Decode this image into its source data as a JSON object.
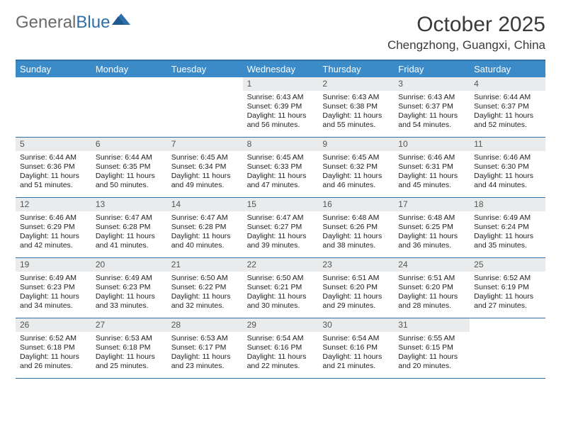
{
  "logo": {
    "text1": "General",
    "text2": "Blue"
  },
  "title": "October 2025",
  "location": "Chengzhong, Guangxi, China",
  "colors": {
    "header_bg": "#3b8bc8",
    "border": "#2f6fa8",
    "daynum_bg": "#e9ebec",
    "logo_gray": "#6a6a6a",
    "logo_blue": "#2f6fa8"
  },
  "weekdays": [
    "Sunday",
    "Monday",
    "Tuesday",
    "Wednesday",
    "Thursday",
    "Friday",
    "Saturday"
  ],
  "weeks": [
    [
      null,
      null,
      null,
      {
        "n": "1",
        "sr": "6:43 AM",
        "ss": "6:39 PM",
        "dl": "11 hours and 56 minutes."
      },
      {
        "n": "2",
        "sr": "6:43 AM",
        "ss": "6:38 PM",
        "dl": "11 hours and 55 minutes."
      },
      {
        "n": "3",
        "sr": "6:43 AM",
        "ss": "6:37 PM",
        "dl": "11 hours and 54 minutes."
      },
      {
        "n": "4",
        "sr": "6:44 AM",
        "ss": "6:37 PM",
        "dl": "11 hours and 52 minutes."
      }
    ],
    [
      {
        "n": "5",
        "sr": "6:44 AM",
        "ss": "6:36 PM",
        "dl": "11 hours and 51 minutes."
      },
      {
        "n": "6",
        "sr": "6:44 AM",
        "ss": "6:35 PM",
        "dl": "11 hours and 50 minutes."
      },
      {
        "n": "7",
        "sr": "6:45 AM",
        "ss": "6:34 PM",
        "dl": "11 hours and 49 minutes."
      },
      {
        "n": "8",
        "sr": "6:45 AM",
        "ss": "6:33 PM",
        "dl": "11 hours and 47 minutes."
      },
      {
        "n": "9",
        "sr": "6:45 AM",
        "ss": "6:32 PM",
        "dl": "11 hours and 46 minutes."
      },
      {
        "n": "10",
        "sr": "6:46 AM",
        "ss": "6:31 PM",
        "dl": "11 hours and 45 minutes."
      },
      {
        "n": "11",
        "sr": "6:46 AM",
        "ss": "6:30 PM",
        "dl": "11 hours and 44 minutes."
      }
    ],
    [
      {
        "n": "12",
        "sr": "6:46 AM",
        "ss": "6:29 PM",
        "dl": "11 hours and 42 minutes."
      },
      {
        "n": "13",
        "sr": "6:47 AM",
        "ss": "6:28 PM",
        "dl": "11 hours and 41 minutes."
      },
      {
        "n": "14",
        "sr": "6:47 AM",
        "ss": "6:28 PM",
        "dl": "11 hours and 40 minutes."
      },
      {
        "n": "15",
        "sr": "6:47 AM",
        "ss": "6:27 PM",
        "dl": "11 hours and 39 minutes."
      },
      {
        "n": "16",
        "sr": "6:48 AM",
        "ss": "6:26 PM",
        "dl": "11 hours and 38 minutes."
      },
      {
        "n": "17",
        "sr": "6:48 AM",
        "ss": "6:25 PM",
        "dl": "11 hours and 36 minutes."
      },
      {
        "n": "18",
        "sr": "6:49 AM",
        "ss": "6:24 PM",
        "dl": "11 hours and 35 minutes."
      }
    ],
    [
      {
        "n": "19",
        "sr": "6:49 AM",
        "ss": "6:23 PM",
        "dl": "11 hours and 34 minutes."
      },
      {
        "n": "20",
        "sr": "6:49 AM",
        "ss": "6:23 PM",
        "dl": "11 hours and 33 minutes."
      },
      {
        "n": "21",
        "sr": "6:50 AM",
        "ss": "6:22 PM",
        "dl": "11 hours and 32 minutes."
      },
      {
        "n": "22",
        "sr": "6:50 AM",
        "ss": "6:21 PM",
        "dl": "11 hours and 30 minutes."
      },
      {
        "n": "23",
        "sr": "6:51 AM",
        "ss": "6:20 PM",
        "dl": "11 hours and 29 minutes."
      },
      {
        "n": "24",
        "sr": "6:51 AM",
        "ss": "6:20 PM",
        "dl": "11 hours and 28 minutes."
      },
      {
        "n": "25",
        "sr": "6:52 AM",
        "ss": "6:19 PM",
        "dl": "11 hours and 27 minutes."
      }
    ],
    [
      {
        "n": "26",
        "sr": "6:52 AM",
        "ss": "6:18 PM",
        "dl": "11 hours and 26 minutes."
      },
      {
        "n": "27",
        "sr": "6:53 AM",
        "ss": "6:18 PM",
        "dl": "11 hours and 25 minutes."
      },
      {
        "n": "28",
        "sr": "6:53 AM",
        "ss": "6:17 PM",
        "dl": "11 hours and 23 minutes."
      },
      {
        "n": "29",
        "sr": "6:54 AM",
        "ss": "6:16 PM",
        "dl": "11 hours and 22 minutes."
      },
      {
        "n": "30",
        "sr": "6:54 AM",
        "ss": "6:16 PM",
        "dl": "11 hours and 21 minutes."
      },
      {
        "n": "31",
        "sr": "6:55 AM",
        "ss": "6:15 PM",
        "dl": "11 hours and 20 minutes."
      },
      null
    ]
  ],
  "labels": {
    "sunrise": "Sunrise:",
    "sunset": "Sunset:",
    "daylight": "Daylight:"
  }
}
